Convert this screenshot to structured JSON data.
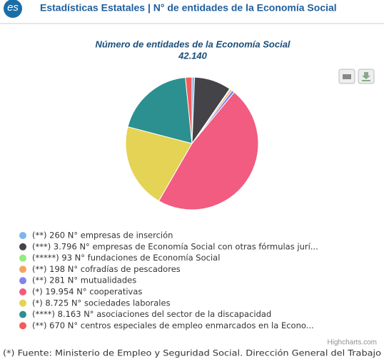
{
  "header": {
    "logo": "es",
    "title": "Estadísticas Estatales | N° de entidades de la Economía Social"
  },
  "chart_data": {
    "type": "pie",
    "title": "Número de entidades de la Economía Social",
    "subtitle": "42.140",
    "categories": [
      "(**) 260 N° empresas de inserción",
      "(***) 3.796 N° empresas de Economía Social con otras fórmulas jurí...",
      "(*****) 93 N° fundaciones de Economía Social",
      "(**) 198 N° cofradías de pescadores",
      "(**) 281 N° mutualidades",
      "(*) 19.954 N° cooperativas",
      "(*) 8.725 N° sociedades laborales",
      "(****) 8.163 N° asociaciones del sector de la discapacidad",
      "(**) 670 N° centros especiales de empleo enmarcados en la Econo..."
    ],
    "values": [
      260,
      3796,
      93,
      198,
      281,
      19954,
      8725,
      8163,
      670
    ],
    "colors": [
      "#7cb5ec",
      "#434348",
      "#90ed7d",
      "#f7a35c",
      "#8085e9",
      "#f15c80",
      "#e4d354",
      "#2b908f",
      "#f45b5b"
    ],
    "credits": "Highcharts.com"
  },
  "footnote": "(*) Fuente: Ministerio de Empleo y Seguridad Social. Dirección General del Trabajo"
}
